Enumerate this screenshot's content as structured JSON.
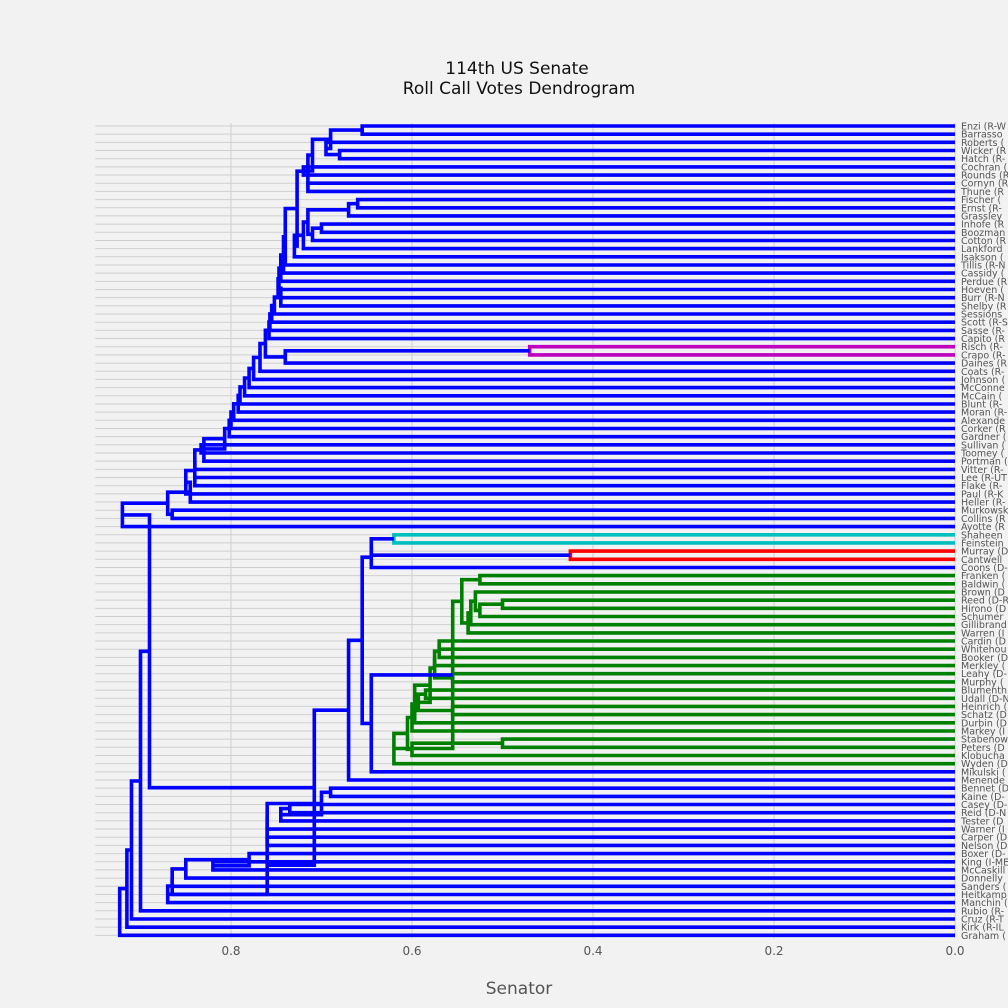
{
  "chart_data": {
    "type": "dendrogram",
    "title": "114th US Senate",
    "subtitle": "Roll Call Votes Dendrogram",
    "xlabel": "Senator",
    "ylabel": "",
    "xlim": [
      0.95,
      0.0
    ],
    "xticks": [
      0.8,
      0.6,
      0.4,
      0.2,
      0.0
    ],
    "xtick_labels": [
      "0.8",
      "0.6",
      "0.4",
      "0.2",
      "0.0"
    ],
    "grid": true,
    "leaf_labels": [
      "Enzi (R-W",
      "Barrasso",
      "Roberts (",
      "Wicker (R",
      "Hatch (R-",
      "Cochran (",
      "Rounds (R",
      "Cornyn (R",
      "Thune (R",
      "Fischer (",
      "Ernst (R-",
      "Grassley",
      "Inhofe (R",
      "Boozman",
      "Cotton (R",
      "Lankford",
      "Isakson (",
      "Tillis (R-N",
      "Cassidy (",
      "Perdue (R",
      "Hoeven (",
      "Burr (R-N",
      "Shelby (R",
      "Sessions",
      "Scott (R-S",
      "Sasse (R-",
      "Capito (R",
      "Risch (R-",
      "Crapo (R-",
      "Daines (R",
      "Coats (R-",
      "Johnson (",
      "McConne",
      "McCain (",
      "Blunt (R-",
      "Moran (R-",
      "Alexande",
      "Corker (R",
      "Gardner (",
      "Sullivan (",
      "Toomey (",
      "Portman (",
      "Vitter (R-",
      "Lee (R-UT",
      "Flake (R-",
      "Paul (R-K",
      "Heller (R-",
      "Murkowsk",
      "Collins (R",
      "Ayotte (R",
      "Shaheen",
      "Feinstein",
      "Murray (D",
      "Cantwell",
      "Coons (D-",
      "Franken (",
      "Baldwin (",
      "Brown (D",
      "Reed (D-R",
      "Hirono (D",
      "Schumer",
      "Gillibrand",
      "Warren (I",
      "Cardin (D",
      "Whitehou",
      "Booker (D",
      "Merkley (",
      "Leahy (D-",
      "Murphy (",
      "Blumenth",
      "Udall (D-N",
      "Heinrich (",
      "Schatz (D",
      "Durbin (D",
      "Markey (I",
      "Stabenow",
      "Peters (D",
      "Klobucha",
      "Wyden (D",
      "Mikulski (",
      "Menende",
      "Bennet (D",
      "Kaine (D-",
      "Casey (D-",
      "Reid (D-N",
      "Tester (D",
      "Warner (I",
      "Carper (D",
      "Nelson (D",
      "Boxer (D-",
      "King (I-ME",
      "McCaskill",
      "Donnelly",
      "Sanders (",
      "Heitkamp",
      "Manchin (",
      "Rubio (R-",
      "Cruz (R-T",
      "Kirk (R-IL",
      "Graham ("
    ],
    "links": [
      {
        "top": 0.655,
        "a": 0,
        "b": 1,
        "color": "blue"
      },
      {
        "top": 0.68,
        "a": 3,
        "b": 4,
        "color": "blue"
      },
      {
        "top": 0.695,
        "a": 2,
        "b": "L1",
        "color": "blue"
      },
      {
        "top": 0.69,
        "a": "L0",
        "b": "L2",
        "color": "blue"
      },
      {
        "top": 0.72,
        "a": 5,
        "b": 6,
        "color": "blue"
      },
      {
        "top": 0.71,
        "a": "L3",
        "b": "L4",
        "color": "blue"
      },
      {
        "top": 0.66,
        "a": 9,
        "b": 10,
        "color": "blue"
      },
      {
        "top": 0.67,
        "a": "L6",
        "b": 11,
        "color": "blue"
      },
      {
        "top": 0.7,
        "a": 12,
        "b": 13,
        "color": "blue"
      },
      {
        "top": 0.71,
        "a": "L8",
        "b": 14,
        "color": "blue"
      },
      {
        "top": 0.715,
        "a": "L7",
        "b": "L9",
        "color": "blue"
      },
      {
        "top": 0.72,
        "a": "L10",
        "b": 15,
        "color": "blue"
      },
      {
        "top": 0.73,
        "a": "L11",
        "b": 16,
        "color": "blue"
      },
      {
        "top": 0.715,
        "a": 7,
        "b": 8,
        "color": "blue"
      },
      {
        "top": 0.715,
        "a": "L5",
        "b": "L13",
        "color": "blue"
      },
      {
        "top": 0.727,
        "a": "L14",
        "b": "L12",
        "color": "blue"
      },
      {
        "top": 0.74,
        "a": "L15",
        "b": 17,
        "color": "blue"
      },
      {
        "top": 0.742,
        "a": "L16",
        "b": 18,
        "color": "blue"
      },
      {
        "top": 0.745,
        "a": "L17",
        "b": 19,
        "color": "blue"
      },
      {
        "top": 0.747,
        "a": "L18",
        "b": 20,
        "color": "blue"
      },
      {
        "top": 0.748,
        "a": "L19",
        "b": 21,
        "color": "blue"
      },
      {
        "top": 0.745,
        "a": "L20",
        "b": 22,
        "color": "blue"
      },
      {
        "top": 0.752,
        "a": "L21",
        "b": 23,
        "color": "blue"
      },
      {
        "top": 0.755,
        "a": "L22",
        "b": 24,
        "color": "blue"
      },
      {
        "top": 0.757,
        "a": "L23",
        "b": 25,
        "color": "blue"
      },
      {
        "top": 0.758,
        "a": "L24",
        "b": 26,
        "color": "blue"
      },
      {
        "top": 0.47,
        "a": 27,
        "b": 28,
        "color": "magenta"
      },
      {
        "top": 0.74,
        "a": "L26",
        "b": 29,
        "color": "blue"
      },
      {
        "top": 0.762,
        "a": "L25",
        "b": "L27",
        "color": "blue"
      },
      {
        "top": 0.768,
        "a": "L28",
        "b": 30,
        "color": "blue"
      },
      {
        "top": 0.775,
        "a": "L29",
        "b": 31,
        "color": "blue"
      },
      {
        "top": 0.78,
        "a": "L30",
        "b": 32,
        "color": "blue"
      },
      {
        "top": 0.785,
        "a": "L31",
        "b": 33,
        "color": "blue"
      },
      {
        "top": 0.79,
        "a": "L32",
        "b": 34,
        "color": "blue"
      },
      {
        "top": 0.792,
        "a": "L33",
        "b": 35,
        "color": "blue"
      },
      {
        "top": 0.797,
        "a": "L34",
        "b": 36,
        "color": "blue"
      },
      {
        "top": 0.8,
        "a": "L35",
        "b": 37,
        "color": "blue"
      },
      {
        "top": 0.802,
        "a": "L36",
        "b": 38,
        "color": "blue"
      },
      {
        "top": 0.833,
        "a": 39,
        "b": 40,
        "color": "blue"
      },
      {
        "top": 0.807,
        "a": "L37",
        "b": "L38",
        "color": "blue"
      },
      {
        "top": 0.83,
        "a": "L39",
        "b": 41,
        "color": "blue"
      },
      {
        "top": 0.84,
        "a": "L40",
        "b": 42,
        "color": "blue"
      },
      {
        "top": 0.84,
        "a": 43,
        "b": 44,
        "color": "blue"
      },
      {
        "top": 0.84,
        "a": "L41",
        "b": "L42",
        "color": "blue"
      },
      {
        "top": 0.85,
        "a": "L43",
        "b": 45,
        "color": "blue"
      },
      {
        "top": 0.845,
        "a": "L44",
        "b": 46,
        "color": "blue"
      },
      {
        "top": 0.865,
        "a": 47,
        "b": 48,
        "color": "blue"
      },
      {
        "top": 0.87,
        "a": "L45",
        "b": "L46",
        "color": "blue"
      },
      {
        "top": 0.92,
        "a": "L47",
        "b": 49,
        "color": "blue"
      },
      {
        "top": 0.62,
        "a": 50,
        "b": 51,
        "color": "cyan"
      },
      {
        "top": 0.425,
        "a": 52,
        "b": 53,
        "color": "red"
      },
      {
        "top": 0.645,
        "a": "L49",
        "b": "L50",
        "color": "blue"
      },
      {
        "top": 0.645,
        "a": "L51",
        "b": 54,
        "color": "blue"
      },
      {
        "top": 0.525,
        "a": 55,
        "b": 56,
        "color": "green"
      },
      {
        "top": 0.5,
        "a": 58,
        "b": 59,
        "color": "green"
      },
      {
        "top": 0.525,
        "a": "L54",
        "b": 60,
        "color": "green"
      },
      {
        "top": 0.53,
        "a": 57,
        "b": "L55",
        "color": "green"
      },
      {
        "top": 0.535,
        "a": "L56",
        "b": 61,
        "color": "green"
      },
      {
        "top": 0.538,
        "a": "L57",
        "b": 62,
        "color": "green"
      },
      {
        "top": 0.545,
        "a": "L53",
        "b": "L58",
        "color": "green"
      },
      {
        "top": 0.57,
        "a": 63,
        "b": 64,
        "color": "green"
      },
      {
        "top": 0.57,
        "a": "L60",
        "b": 65,
        "color": "green"
      },
      {
        "top": 0.575,
        "a": "L61",
        "b": 66,
        "color": "green"
      },
      {
        "top": 0.555,
        "a": 67,
        "b": 68,
        "color": "green"
      },
      {
        "top": 0.575,
        "a": "L62",
        "b": "L63",
        "color": "green"
      },
      {
        "top": 0.555,
        "a": 71,
        "b": 72,
        "color": "green"
      },
      {
        "top": 0.585,
        "a": 69,
        "b": 70,
        "color": "green"
      },
      {
        "top": 0.593,
        "a": "L65",
        "b": "L66",
        "color": "green"
      },
      {
        "top": 0.58,
        "a": "L64",
        "b": "L67",
        "color": "green"
      },
      {
        "top": 0.597,
        "a": "L68",
        "b": 73,
        "color": "green"
      },
      {
        "top": 0.6,
        "a": "L69",
        "b": 74,
        "color": "green"
      },
      {
        "top": 0.5,
        "a": 75,
        "b": 76,
        "color": "green"
      },
      {
        "top": 0.6,
        "a": "L71",
        "b": 77,
        "color": "green"
      },
      {
        "top": 0.605,
        "a": "L70",
        "b": "L72",
        "color": "green"
      },
      {
        "top": 0.62,
        "a": "L73",
        "b": 78,
        "color": "green"
      },
      {
        "top": 0.555,
        "a": "L59",
        "b": "L74",
        "color": "green"
      },
      {
        "top": 0.645,
        "a": "L75",
        "b": 79,
        "color": "blue"
      },
      {
        "top": 0.655,
        "a": "L52",
        "b": "L76",
        "color": "blue"
      },
      {
        "top": 0.67,
        "a": "L77",
        "b": 80,
        "color": "blue"
      },
      {
        "top": 0.69,
        "a": 81,
        "b": 82,
        "color": "blue"
      },
      {
        "top": 0.735,
        "a": 83,
        "b": 84,
        "color": "blue"
      },
      {
        "top": 0.745,
        "a": "L80",
        "b": 85,
        "color": "blue"
      },
      {
        "top": 0.7,
        "a": "L79",
        "b": "L81",
        "color": "blue"
      },
      {
        "top": 0.76,
        "a": "L82",
        "b": 86,
        "color": "blue"
      },
      {
        "top": 0.76,
        "a": "L83",
        "b": 87,
        "color": "blue"
      },
      {
        "top": 0.76,
        "a": "L84",
        "b": 88,
        "color": "blue"
      },
      {
        "top": 0.82,
        "a": 90,
        "b": 91,
        "color": "blue"
      },
      {
        "top": 0.78,
        "a": 89,
        "b": "L86",
        "color": "blue"
      },
      {
        "top": 0.85,
        "a": "L87",
        "b": 92,
        "color": "blue"
      },
      {
        "top": 0.865,
        "a": "L88",
        "b": 93,
        "color": "blue"
      },
      {
        "top": 0.865,
        "a": "L89",
        "b": 94,
        "color": "blue"
      },
      {
        "top": 0.87,
        "a": "L90",
        "b": 95,
        "color": "blue"
      },
      {
        "top": 0.76,
        "a": "L85",
        "b": "L91",
        "color": "blue"
      },
      {
        "top": 0.708,
        "a": "L78",
        "b": "L92",
        "color": "blue"
      },
      {
        "top": 0.89,
        "a": "L48",
        "b": "L93",
        "color": "blue"
      },
      {
        "top": 0.9,
        "a": "L94",
        "b": 96,
        "color": "blue"
      },
      {
        "top": 0.91,
        "a": "L95",
        "b": 97,
        "color": "blue"
      },
      {
        "top": 0.915,
        "a": "L96",
        "b": 98,
        "color": "blue"
      },
      {
        "top": 0.923,
        "a": "L97",
        "b": 99,
        "color": "blue"
      }
    ],
    "colors": {
      "blue": "#0000ff",
      "green": "#008000",
      "cyan": "#00bfbf",
      "red": "#ff0000",
      "magenta": "#bf00bf",
      "grid": "#cfcfcf",
      "background": "#f2f2f2"
    }
  }
}
